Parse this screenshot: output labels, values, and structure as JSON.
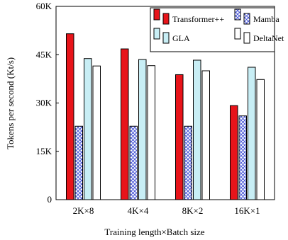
{
  "chart_data": {
    "type": "bar",
    "xlabel": "Training length×Batch size",
    "ylabel": "Tokens per second (Kt/s)",
    "ylim": [
      0,
      60000
    ],
    "yticks": [
      0,
      15000,
      30000,
      45000,
      60000
    ],
    "ytick_labels": [
      "0",
      "15K",
      "30K",
      "45K",
      "60K"
    ],
    "categories": [
      "2K×8",
      "4K×4",
      "8K×2",
      "16K×1"
    ],
    "grid": false,
    "legend_position": "top-right",
    "series": [
      {
        "name": "Transformer++",
        "color": "#e8141a",
        "pattern": "solid",
        "values": [
          51500,
          46800,
          38800,
          29200
        ]
      },
      {
        "name": "Mamba",
        "color": "#9aa2e8",
        "pattern": "crosshatch",
        "values": [
          22800,
          22800,
          22800,
          26000
        ]
      },
      {
        "name": "GLA",
        "color": "#c8eef5",
        "pattern": "solid",
        "values": [
          43800,
          43500,
          43300,
          41100
        ]
      },
      {
        "name": "DeltaNet",
        "color": "#ffffff",
        "pattern": "solid",
        "values": [
          41500,
          41600,
          40000,
          37300
        ]
      }
    ]
  }
}
